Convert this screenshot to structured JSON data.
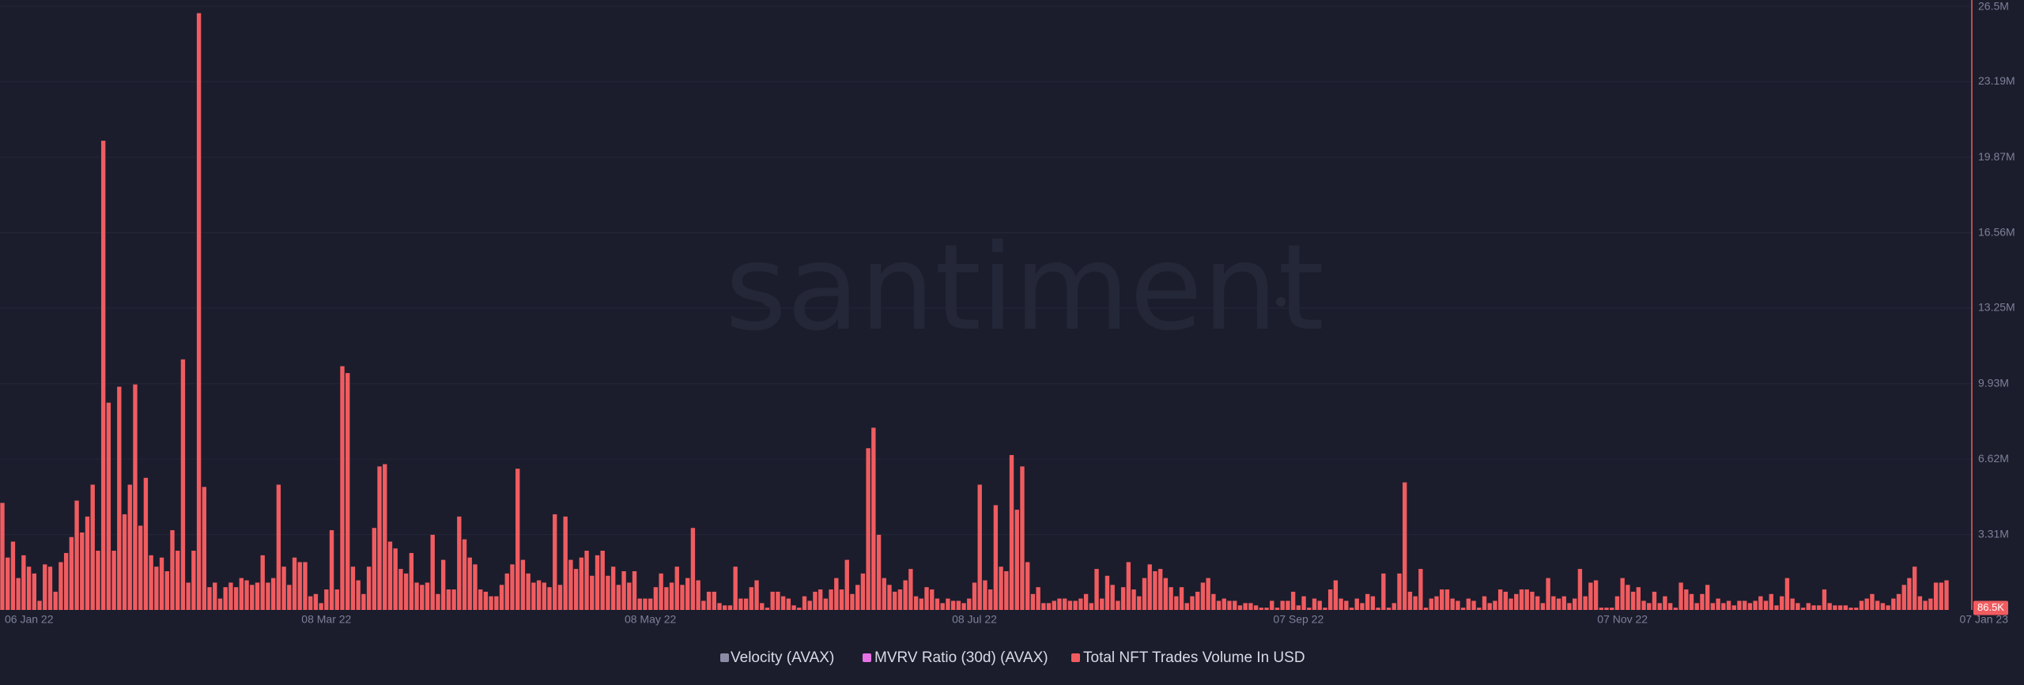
{
  "chart_data": {
    "type": "bar",
    "watermark": "santiment",
    "ylim": [
      0,
      26500000
    ],
    "yticks": [
      {
        "value": 3310000,
        "label": "3.31M"
      },
      {
        "value": 6620000,
        "label": "6.62M"
      },
      {
        "value": 9930000,
        "label": "9.93M"
      },
      {
        "value": 13250000,
        "label": "13.25M"
      },
      {
        "value": 16560000,
        "label": "16.56M"
      },
      {
        "value": 19870000,
        "label": "19.87M"
      },
      {
        "value": 23190000,
        "label": "23.19M"
      },
      {
        "value": 26500000,
        "label": "26.5M"
      }
    ],
    "grid": true,
    "latest": {
      "value": 86500,
      "label": "86.5K"
    },
    "categories": [
      "06 Jan 22",
      null,
      null,
      null,
      null,
      null,
      null,
      null,
      null,
      null,
      null,
      null,
      null,
      null,
      null,
      null,
      null,
      null,
      null,
      null,
      null,
      null,
      null,
      null,
      null,
      null,
      null,
      null,
      null,
      null,
      null,
      null,
      null,
      null,
      null,
      null,
      null,
      null,
      null,
      null,
      null,
      null,
      null,
      null,
      null,
      null,
      null,
      null,
      null,
      null,
      null,
      null,
      null,
      null,
      null,
      null,
      null,
      null,
      null,
      null,
      null,
      "08 Mar 22",
      null,
      null,
      null,
      null,
      null,
      null,
      null,
      null,
      null,
      null,
      null,
      null,
      null,
      null,
      null,
      null,
      null,
      null,
      null,
      null,
      null,
      null,
      null,
      null,
      null,
      null,
      null,
      null,
      null,
      null,
      null,
      null,
      null,
      null,
      null,
      null,
      null,
      null,
      null,
      null,
      null,
      null,
      null,
      null,
      null,
      null,
      null,
      null,
      null,
      null,
      null,
      null,
      null,
      null,
      null,
      null,
      null,
      null,
      null,
      null,
      "08 May 22",
      null,
      null,
      null,
      null,
      null,
      null,
      null,
      null,
      null,
      null,
      null,
      null,
      null,
      null,
      null,
      null,
      null,
      null,
      null,
      null,
      null,
      null,
      null,
      null,
      null,
      null,
      null,
      null,
      null,
      null,
      null,
      null,
      null,
      null,
      null,
      null,
      null,
      null,
      null,
      null,
      null,
      null,
      null,
      null,
      null,
      null,
      null,
      null,
      null,
      null,
      null,
      null,
      null,
      null,
      null,
      null,
      null,
      null,
      null,
      null,
      "08 Jul 22",
      null,
      null,
      null,
      null,
      null,
      null,
      null,
      null,
      null,
      null,
      null,
      null,
      null,
      null,
      null,
      null,
      null,
      null,
      null,
      null,
      null,
      null,
      null,
      null,
      null,
      null,
      null,
      null,
      null,
      null,
      null,
      null,
      null,
      null,
      null,
      null,
      null,
      null,
      null,
      null,
      null,
      null,
      null,
      null,
      null,
      null,
      null,
      null,
      null,
      null,
      null,
      null,
      null,
      null,
      null,
      null,
      null,
      null,
      null,
      null,
      "07 Sep 22",
      null,
      null,
      null,
      null,
      null,
      null,
      null,
      null,
      null,
      null,
      null,
      null,
      null,
      null,
      null,
      null,
      null,
      null,
      null,
      null,
      null,
      null,
      null,
      null,
      null,
      null,
      null,
      null,
      null,
      null,
      null,
      null,
      null,
      null,
      null,
      null,
      null,
      null,
      null,
      null,
      null,
      null,
      null,
      null,
      null,
      null,
      null,
      null,
      null,
      null,
      null,
      null,
      null,
      null,
      null,
      null,
      null,
      null,
      null,
      null,
      "07 Nov 22",
      null,
      null,
      null,
      null,
      null,
      null,
      null,
      null,
      null,
      null,
      null,
      null,
      null,
      null,
      null,
      null,
      null,
      null,
      null,
      null,
      null,
      null,
      null,
      null,
      null,
      null,
      null,
      null,
      null,
      null,
      null,
      null,
      null,
      null,
      null,
      null,
      null,
      null,
      null,
      null,
      null,
      null,
      null,
      null,
      null,
      null,
      null,
      null,
      null,
      null,
      null,
      null,
      null,
      null,
      null,
      null,
      null,
      null,
      null,
      null,
      "07 Jan 23"
    ],
    "series": [
      {
        "name": "Velocity (AVAX)",
        "color": "#8a8ca6"
      },
      {
        "name": "MVRV Ratio (30d) (AVAX)",
        "color": "#e672e6"
      },
      {
        "name": "Total NFT Trades Volume In USD",
        "color": "#f05c60",
        "values": [
          4700000,
          2300000,
          3000000,
          1400000,
          2400000,
          1900000,
          1600000,
          400000,
          2000000,
          1900000,
          800000,
          2100000,
          2500000,
          3200000,
          4800000,
          3400000,
          4100000,
          5500000,
          2600000,
          20600000,
          9100000,
          2600000,
          9800000,
          4200000,
          5500000,
          9900000,
          3700000,
          5800000,
          2400000,
          1900000,
          2300000,
          1700000,
          3500000,
          2600000,
          11000000,
          1200000,
          2600000,
          26200000,
          5400000,
          1000000,
          1200000,
          500000,
          1000000,
          1200000,
          1000000,
          1400000,
          1300000,
          1100000,
          1200000,
          2400000,
          1200000,
          1400000,
          5500000,
          1900000,
          1100000,
          2300000,
          2100000,
          2100000,
          600000,
          700000,
          300000,
          900000,
          3500000,
          900000,
          10700000,
          10400000,
          1900000,
          1300000,
          700000,
          1900000,
          3600000,
          6300000,
          6400000,
          3000000,
          2700000,
          1800000,
          1600000,
          2500000,
          1200000,
          1100000,
          1200000,
          3300000,
          700000,
          2200000,
          900000,
          900000,
          4100000,
          3100000,
          2300000,
          2000000,
          900000,
          800000,
          600000,
          600000,
          1100000,
          1600000,
          2000000,
          6200000,
          2200000,
          1600000,
          1200000,
          1300000,
          1200000,
          1000000,
          4200000,
          1100000,
          4100000,
          2200000,
          1800000,
          2300000,
          2600000,
          1500000,
          2400000,
          2600000,
          1500000,
          1900000,
          1100000,
          1700000,
          1200000,
          1700000,
          500000,
          500000,
          500000,
          1000000,
          1600000,
          1000000,
          1200000,
          1900000,
          1100000,
          1400000,
          3600000,
          1300000,
          400000,
          800000,
          800000,
          300000,
          200000,
          200000,
          1900000,
          500000,
          500000,
          1000000,
          1300000,
          300000,
          100000,
          800000,
          800000,
          600000,
          500000,
          200000,
          100000,
          600000,
          400000,
          800000,
          900000,
          500000,
          900000,
          1400000,
          900000,
          2200000,
          700000,
          1100000,
          1600000,
          7100000,
          8000000,
          3300000,
          1400000,
          1100000,
          800000,
          900000,
          1300000,
          1800000,
          600000,
          500000,
          1000000,
          900000,
          500000,
          300000,
          500000,
          400000,
          400000,
          300000,
          500000,
          1200000,
          5500000,
          1300000,
          900000,
          4600000,
          1900000,
          1700000,
          6800000,
          4400000,
          6300000,
          2100000,
          700000,
          1000000,
          300000,
          300000,
          400000,
          500000,
          500000,
          400000,
          400000,
          500000,
          700000,
          300000,
          1800000,
          500000,
          1500000,
          1100000,
          400000,
          1000000,
          2100000,
          900000,
          600000,
          1400000,
          2000000,
          1700000,
          1800000,
          1400000,
          1000000,
          600000,
          1000000,
          300000,
          600000,
          800000,
          1200000,
          1400000,
          700000,
          400000,
          500000,
          400000,
          400000,
          200000,
          300000,
          300000,
          200000,
          100000,
          100000,
          400000,
          100000,
          400000,
          400000,
          800000,
          200000,
          600000,
          100000,
          500000,
          400000,
          100000,
          900000,
          1300000,
          500000,
          400000,
          100000,
          500000,
          300000,
          700000,
          600000,
          100000,
          1600000,
          100000,
          300000,
          1600000,
          5600000,
          800000,
          600000,
          1800000,
          100000,
          500000,
          600000,
          900000,
          900000,
          500000,
          400000,
          100000,
          500000,
          400000,
          100000,
          600000,
          300000,
          400000,
          900000,
          800000,
          500000,
          700000,
          900000,
          900000,
          800000,
          600000,
          300000,
          1400000,
          600000,
          500000,
          600000,
          300000,
          500000,
          1800000,
          600000,
          1200000,
          1300000,
          100000,
          100000,
          100000,
          600000,
          1400000,
          1100000,
          800000,
          1000000,
          400000,
          300000,
          800000,
          300000,
          600000,
          300000,
          100000,
          1200000,
          900000,
          700000,
          300000,
          700000,
          1100000,
          300000,
          500000,
          300000,
          400000,
          200000,
          400000,
          400000,
          300000,
          400000,
          600000,
          400000,
          700000,
          200000,
          600000,
          1400000,
          500000,
          300000,
          100000,
          300000,
          200000,
          200000,
          900000,
          300000,
          200000,
          200000,
          200000,
          100000,
          100000,
          400000,
          500000,
          700000,
          400000,
          300000,
          200000,
          500000,
          700000,
          1100000,
          1400000,
          1900000,
          600000,
          400000,
          500000,
          1200000,
          1200000,
          1300000
        ]
      }
    ]
  }
}
